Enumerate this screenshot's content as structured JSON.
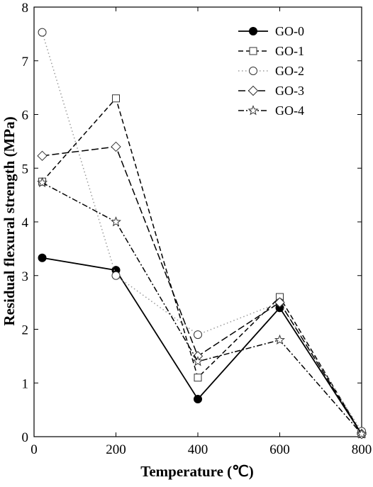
{
  "chart_data": {
    "type": "line",
    "title": "",
    "xlabel": "Temperature (℃)",
    "ylabel": "Residual flexural strength (MPa)",
    "xlim": [
      0,
      800
    ],
    "ylim": [
      0,
      8
    ],
    "xticks": [
      "0",
      "200",
      "400",
      "600",
      "800"
    ],
    "yticks": [
      "0",
      "1",
      "2",
      "3",
      "4",
      "5",
      "6",
      "7",
      "8"
    ],
    "grid": false,
    "legend_position": "top-right",
    "series": [
      {
        "name": "GO-0",
        "marker": "filled-circle",
        "dash": "solid",
        "x": [
          20,
          200,
          400,
          600,
          800
        ],
        "y": [
          3.33,
          3.1,
          0.7,
          2.4,
          0.05
        ]
      },
      {
        "name": "GO-1",
        "marker": "square",
        "dash": "dashed",
        "x": [
          20,
          200,
          400,
          600,
          800
        ],
        "y": [
          4.75,
          6.3,
          1.1,
          2.6,
          0.05
        ]
      },
      {
        "name": "GO-2",
        "marker": "circle",
        "dash": "dotted",
        "x": [
          20,
          200,
          400,
          600,
          800
        ],
        "y": [
          7.53,
          3.0,
          1.9,
          2.5,
          0.1
        ]
      },
      {
        "name": "GO-3",
        "marker": "diamond",
        "dash": "long-dash",
        "x": [
          20,
          200,
          400,
          600,
          800
        ],
        "y": [
          5.23,
          5.4,
          1.5,
          2.5,
          0.05
        ]
      },
      {
        "name": "GO-4",
        "marker": "star",
        "dash": "dash-dot",
        "x": [
          20,
          200,
          400,
          600,
          800
        ],
        "y": [
          4.73,
          4.0,
          1.4,
          1.8,
          0.05
        ]
      }
    ]
  }
}
